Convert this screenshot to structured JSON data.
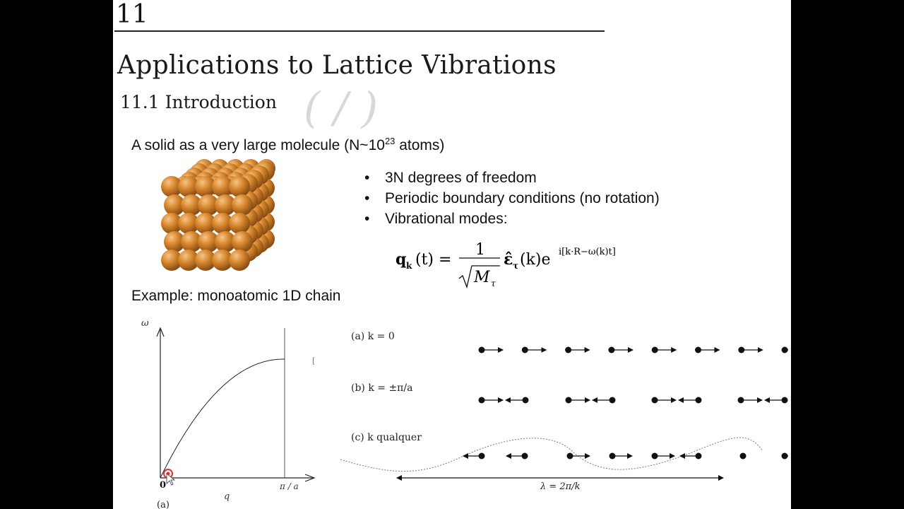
{
  "chapter": {
    "number": "11",
    "title": "Applications to Lattice Vibrations"
  },
  "section": {
    "title": "11.1 Introduction"
  },
  "intro": {
    "text": "A solid as a very large molecule (N~10",
    "sup": "23",
    "tail": " atoms)"
  },
  "bullets": [
    "3N degrees of freedom",
    "Periodic boundary conditions (no rotation)",
    "Vibrational modes:"
  ],
  "formula": {
    "lhs_q": "q",
    "lhs_sub": "k",
    "lhs_arg": "(t) =",
    "num": "1",
    "den_M": "M",
    "den_sub": "τ",
    "eps": "ε̂",
    "eps_sub": "τ",
    "eps_arg": "(k)e",
    "exp": "i[k·R−ω(k)t]"
  },
  "example": {
    "text": "Example: monoatomic 1D chain"
  },
  "dispersion": {
    "omega_label": "ω",
    "q_label": "q",
    "origin_label": "0",
    "bz_label": "π / a",
    "side_label": "[",
    "panel_label": "(a)"
  },
  "modes": {
    "a_label": "(a) k = 0",
    "b_label": "(b) k = ±π/a",
    "c_label": "(c) k qualquer",
    "lambda_label": "λ = 2π/k"
  }
}
